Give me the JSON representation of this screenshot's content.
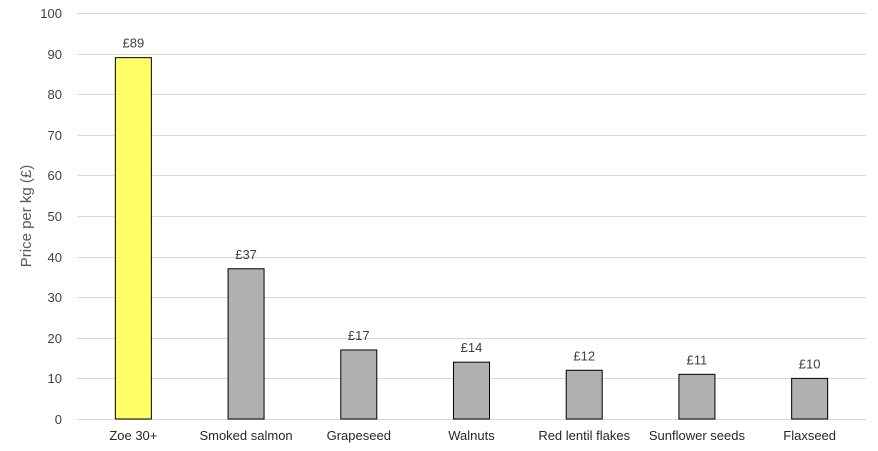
{
  "chart_data": {
    "type": "bar",
    "title": "",
    "xlabel": "",
    "ylabel": "Price per kg (£)",
    "ylim": [
      0,
      100
    ],
    "yticks": [
      0,
      10,
      20,
      30,
      40,
      50,
      60,
      70,
      80,
      90,
      100
    ],
    "grid": true,
    "categories": [
      "Zoe 30+",
      "Smoked salmon",
      "Grapeseed",
      "Walnuts",
      "Red lentil flakes",
      "Sunflower seeds",
      "Flaxseed"
    ],
    "values": [
      89,
      37,
      17,
      14,
      12,
      11,
      10
    ],
    "data_labels": [
      "£89",
      "£37",
      "£17",
      "£14",
      "£12",
      "£11",
      "£10"
    ],
    "colors": [
      "#ffff66",
      "#b0b0b0",
      "#b0b0b0",
      "#b0b0b0",
      "#b0b0b0",
      "#b0b0b0",
      "#b0b0b0"
    ]
  }
}
